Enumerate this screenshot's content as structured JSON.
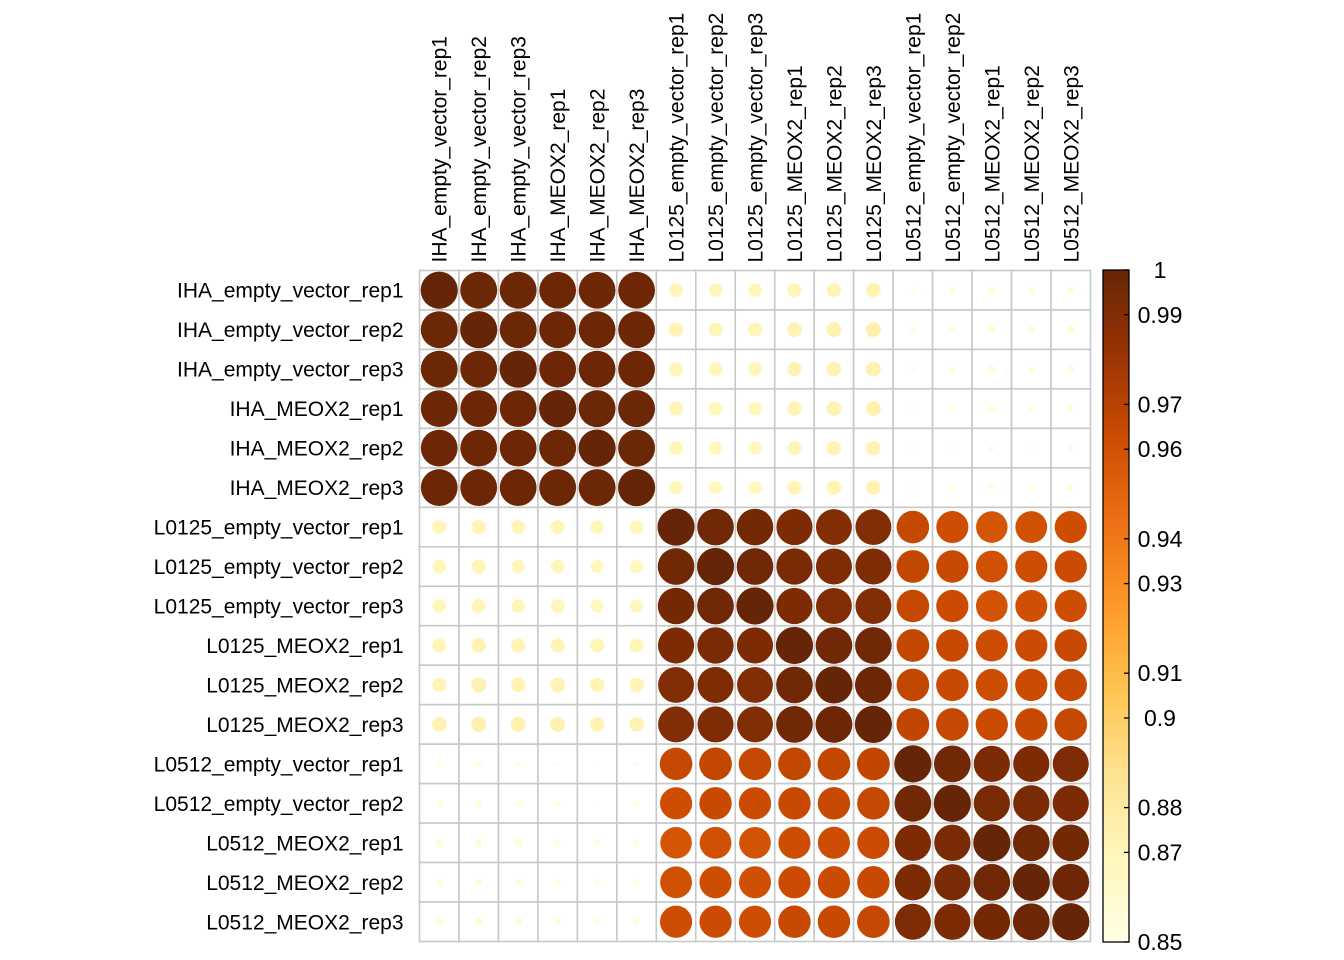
{
  "chart_data": {
    "type": "heatmap",
    "style": "circle-correlation-matrix",
    "rows": [
      "IHA_empty_vector_rep1",
      "IHA_empty_vector_rep2",
      "IHA_empty_vector_rep3",
      "IHA_MEOX2_rep1",
      "IHA_MEOX2_rep2",
      "IHA_MEOX2_rep3",
      "L0125_empty_vector_rep1",
      "L0125_empty_vector_rep2",
      "L0125_empty_vector_rep3",
      "L0125_MEOX2_rep1",
      "L0125_MEOX2_rep2",
      "L0125_MEOX2_rep3",
      "L0512_empty_vector_rep1",
      "L0512_empty_vector_rep2",
      "L0512_MEOX2_rep1",
      "L0512_MEOX2_rep2",
      "L0512_MEOX2_rep3"
    ],
    "columns": [
      "IHA_empty_vector_rep1",
      "IHA_empty_vector_rep2",
      "IHA_empty_vector_rep3",
      "IHA_MEOX2_rep1",
      "IHA_MEOX2_rep2",
      "IHA_MEOX2_rep3",
      "L0125_empty_vector_rep1",
      "L0125_empty_vector_rep2",
      "L0125_empty_vector_rep3",
      "L0125_MEOX2_rep1",
      "L0125_MEOX2_rep2",
      "L0125_MEOX2_rep3",
      "L0512_empty_vector_rep1",
      "L0512_empty_vector_rep2",
      "L0512_MEOX2_rep1",
      "L0512_MEOX2_rep2",
      "L0512_MEOX2_rep3"
    ],
    "values": [
      [
        1.0,
        0.998,
        0.998,
        0.997,
        0.997,
        0.997,
        0.871,
        0.87,
        0.87,
        0.871,
        0.872,
        0.873,
        0.853,
        0.854,
        0.856,
        0.855,
        0.856
      ],
      [
        0.998,
        1.0,
        0.998,
        0.997,
        0.997,
        0.997,
        0.872,
        0.871,
        0.871,
        0.873,
        0.874,
        0.875,
        0.854,
        0.855,
        0.857,
        0.856,
        0.857
      ],
      [
        0.998,
        0.998,
        1.0,
        0.997,
        0.997,
        0.997,
        0.871,
        0.87,
        0.87,
        0.872,
        0.873,
        0.874,
        0.853,
        0.854,
        0.856,
        0.855,
        0.856
      ],
      [
        0.997,
        0.997,
        0.997,
        1.0,
        0.998,
        0.998,
        0.871,
        0.87,
        0.87,
        0.872,
        0.873,
        0.874,
        0.852,
        0.853,
        0.855,
        0.854,
        0.855
      ],
      [
        0.997,
        0.997,
        0.997,
        0.998,
        1.0,
        0.998,
        0.87,
        0.869,
        0.869,
        0.871,
        0.872,
        0.873,
        0.851,
        0.852,
        0.854,
        0.853,
        0.854
      ],
      [
        0.997,
        0.997,
        0.997,
        0.998,
        0.998,
        1.0,
        0.87,
        0.869,
        0.869,
        0.871,
        0.872,
        0.873,
        0.852,
        0.853,
        0.854,
        0.853,
        0.855
      ],
      [
        0.871,
        0.872,
        0.871,
        0.871,
        0.87,
        0.87,
        1.0,
        0.996,
        0.995,
        0.992,
        0.99,
        0.99,
        0.965,
        0.962,
        0.958,
        0.96,
        0.962
      ],
      [
        0.87,
        0.871,
        0.87,
        0.87,
        0.869,
        0.869,
        0.996,
        1.0,
        0.996,
        0.993,
        0.991,
        0.991,
        0.966,
        0.964,
        0.96,
        0.962,
        0.963
      ],
      [
        0.87,
        0.871,
        0.87,
        0.87,
        0.869,
        0.869,
        0.995,
        0.996,
        1.0,
        0.992,
        0.99,
        0.99,
        0.965,
        0.963,
        0.959,
        0.961,
        0.962
      ],
      [
        0.871,
        0.873,
        0.872,
        0.872,
        0.871,
        0.871,
        0.992,
        0.993,
        0.992,
        1.0,
        0.996,
        0.996,
        0.966,
        0.964,
        0.962,
        0.963,
        0.964
      ],
      [
        0.872,
        0.874,
        0.873,
        0.873,
        0.872,
        0.872,
        0.99,
        0.991,
        0.99,
        0.996,
        1.0,
        0.997,
        0.966,
        0.964,
        0.962,
        0.963,
        0.964
      ],
      [
        0.873,
        0.875,
        0.874,
        0.874,
        0.873,
        0.873,
        0.99,
        0.991,
        0.99,
        0.996,
        0.997,
        1.0,
        0.967,
        0.965,
        0.963,
        0.964,
        0.965
      ],
      [
        0.853,
        0.854,
        0.853,
        0.852,
        0.851,
        0.852,
        0.965,
        0.966,
        0.965,
        0.966,
        0.966,
        0.967,
        1.0,
        0.996,
        0.992,
        0.992,
        0.991
      ],
      [
        0.854,
        0.855,
        0.854,
        0.853,
        0.852,
        0.853,
        0.962,
        0.964,
        0.963,
        0.964,
        0.964,
        0.965,
        0.996,
        1.0,
        0.993,
        0.993,
        0.992
      ],
      [
        0.856,
        0.857,
        0.856,
        0.855,
        0.854,
        0.854,
        0.958,
        0.96,
        0.959,
        0.962,
        0.962,
        0.963,
        0.992,
        0.993,
        1.0,
        0.996,
        0.995
      ],
      [
        0.855,
        0.856,
        0.855,
        0.854,
        0.853,
        0.853,
        0.96,
        0.962,
        0.961,
        0.963,
        0.963,
        0.964,
        0.992,
        0.993,
        0.996,
        1.0,
        0.997
      ],
      [
        0.856,
        0.857,
        0.856,
        0.855,
        0.854,
        0.855,
        0.962,
        0.963,
        0.962,
        0.964,
        0.964,
        0.965,
        0.991,
        0.992,
        0.995,
        0.997,
        1.0
      ]
    ],
    "color_scale": {
      "range": [
        0.85,
        1
      ],
      "ticks": [
        "1",
        "0.99",
        "0.97",
        "0.96",
        "0.94",
        "0.93",
        "0.91",
        "0.9",
        "0.88",
        "0.87",
        "0.85"
      ],
      "tick_values": [
        1.0,
        0.99,
        0.97,
        0.96,
        0.94,
        0.93,
        0.91,
        0.9,
        0.88,
        0.87,
        0.85
      ],
      "palette": [
        "#FFFFE5",
        "#FFF7BC",
        "#FEE391",
        "#FEC44F",
        "#FE9929",
        "#EC7014",
        "#CC4C02",
        "#993404",
        "#662506"
      ]
    },
    "grid": true,
    "legend_position": "right",
    "title": "",
    "xlabel": "",
    "ylabel": ""
  }
}
